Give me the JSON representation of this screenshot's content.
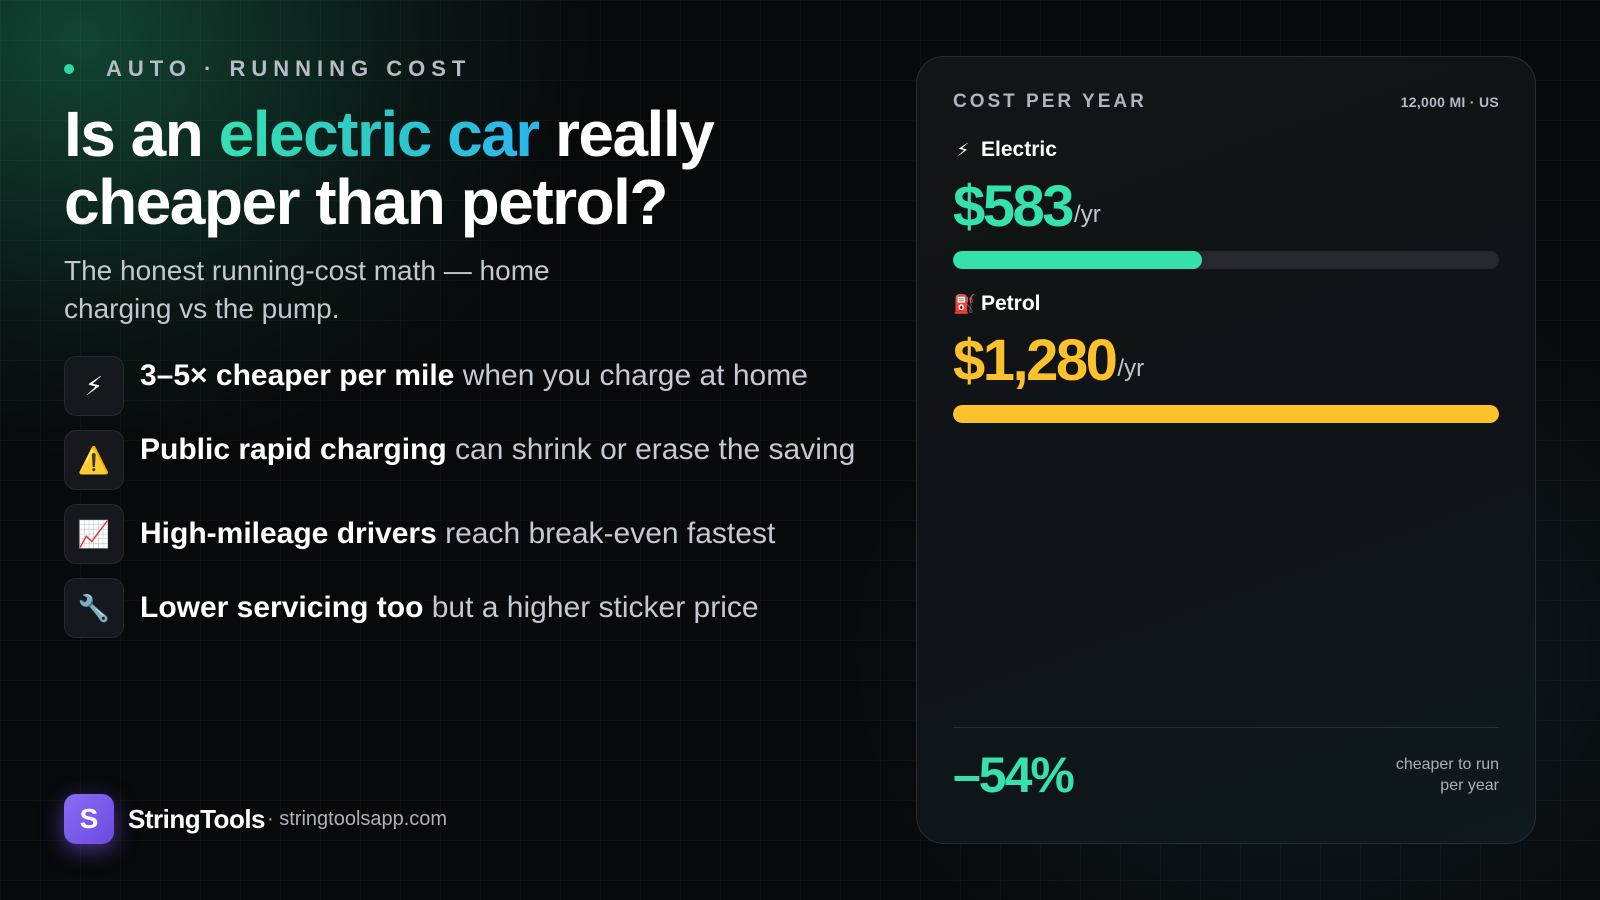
{
  "header": {
    "eyebrow": "AUTO · RUNNING COST",
    "title_part1": "Is an ",
    "title_highlight": "electric car",
    "title_part2": " really cheaper than petrol?",
    "subtitle": "The honest running-cost math — home charging vs the pump."
  },
  "bullets": [
    {
      "icon": "lightning-icon",
      "glyph": "⚡",
      "bold": "3–5× cheaper per mile",
      "rest": " when you charge at home"
    },
    {
      "icon": "warning-icon",
      "glyph": "⚠️",
      "bold": "Public rapid charging",
      "rest": " can shrink or erase the saving"
    },
    {
      "icon": "chart-increasing-icon",
      "glyph": "📈",
      "bold": "High-mileage drivers",
      "rest": " reach break-even fastest"
    },
    {
      "icon": "wrench-icon",
      "glyph": "🔧",
      "bold": "Lower servicing too",
      "rest": " but a higher sticker price"
    }
  ],
  "brand": {
    "logo_letter": "S",
    "name": "StringTools",
    "url": "· stringtoolsapp.com"
  },
  "card": {
    "title": "COST PER YEAR",
    "meta": "12,000 MI · US",
    "unit": "/yr",
    "electric": {
      "icon": "lightning-icon",
      "glyph": "⚡",
      "label": "Electric",
      "amount": "$583",
      "value": 583,
      "color": "#35e2ae"
    },
    "petrol": {
      "icon": "fuel-pump-icon",
      "glyph": "⛽",
      "label": "Petrol",
      "amount": "$1,280",
      "value": 1280,
      "color": "#fcc12b"
    },
    "saving": "–54%",
    "saving_note_line1": "cheaper to run",
    "saving_note_line2": "per year"
  },
  "colors": {
    "accent_green": "#35e2ae",
    "accent_yellow": "#fcc12b",
    "brand_purple": "#7c5cf0",
    "background": "#08090b"
  }
}
